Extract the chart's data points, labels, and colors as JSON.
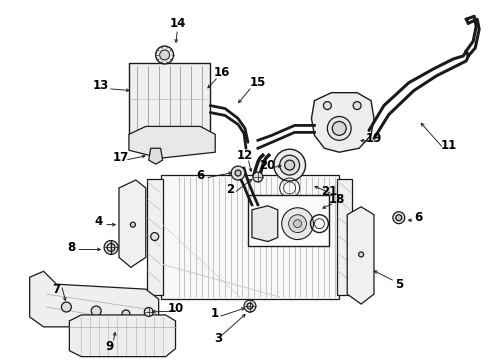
{
  "background_color": "#ffffff",
  "line_color": "#1a1a1a",
  "label_color": "#000000",
  "figsize": [
    4.89,
    3.6
  ],
  "dpi": 100,
  "label_fontsize": 8.5,
  "lw": 0.9
}
